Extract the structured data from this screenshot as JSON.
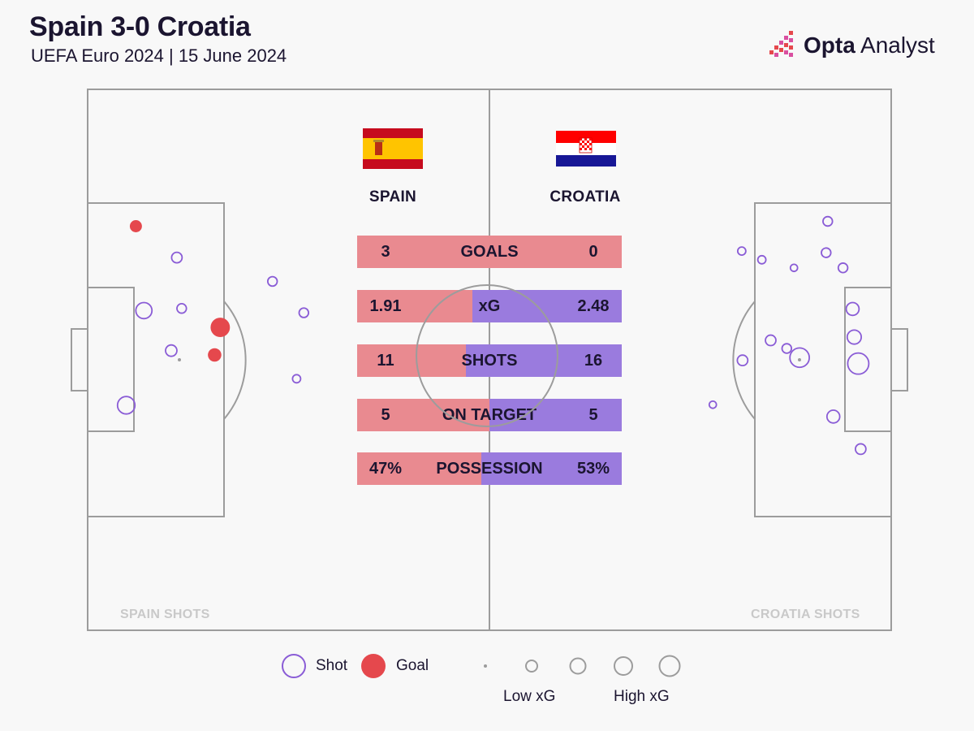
{
  "header": {
    "title": "Spain 3-0 Croatia",
    "subtitle": "UEFA Euro 2024 | 15 June 2024",
    "brand_bold": "Opta",
    "brand_rest": " Analyst"
  },
  "colors": {
    "spain": "#e98a90",
    "croatia": "#9a7bde",
    "shot": "#8a5cd6",
    "goal": "#e5484d",
    "pitch_line": "#9c9c9c"
  },
  "teams": {
    "home": {
      "name": "SPAIN",
      "flag": "spain-flag"
    },
    "away": {
      "name": "CROATIA",
      "flag": "croatia-flag"
    }
  },
  "chart_data": [
    {
      "type": "bar",
      "categories": [
        "GOALS",
        "xG",
        "SHOTS",
        "ON TARGET",
        "POSSESSION"
      ],
      "series": [
        {
          "name": "SPAIN",
          "values": [
            3,
            1.91,
            11,
            5,
            47
          ],
          "labels": [
            "3",
            "1.91",
            "11",
            "5",
            "47%"
          ]
        },
        {
          "name": "CROATIA",
          "values": [
            0,
            2.48,
            16,
            5,
            53
          ],
          "labels": [
            "0",
            "2.48",
            "16",
            "5",
            "53%"
          ]
        }
      ],
      "purple_share": [
        0,
        0.565,
        0.59,
        0.5,
        0.53
      ]
    },
    {
      "type": "scatter",
      "label": "SPAIN SHOTS",
      "pitch": "left half, attacking goal on left",
      "points": [
        {
          "x": 4.8,
          "y": 58.4,
          "xg": 0.15,
          "goal": false
        },
        {
          "x": 7.0,
          "y": 40.9,
          "xg": 0.12,
          "goal": false
        },
        {
          "x": 6.0,
          "y": 25.3,
          "xg": 0.05,
          "goal": true
        },
        {
          "x": 11.1,
          "y": 31.1,
          "xg": 0.03,
          "goal": false
        },
        {
          "x": 11.7,
          "y": 40.5,
          "xg": 0.02,
          "goal": false
        },
        {
          "x": 16.5,
          "y": 44.0,
          "xg": 0.2,
          "goal": true
        },
        {
          "x": 15.8,
          "y": 49.1,
          "xg": 0.07,
          "goal": true
        },
        {
          "x": 23.0,
          "y": 35.5,
          "xg": 0.02,
          "goal": false
        },
        {
          "x": 26.9,
          "y": 41.3,
          "xg": 0.02,
          "goal": false
        },
        {
          "x": 26.0,
          "y": 53.5,
          "xg": 0.01,
          "goal": false
        },
        {
          "x": 10.4,
          "y": 48.3,
          "xg": 0.04,
          "goal": false
        }
      ]
    },
    {
      "type": "scatter",
      "label": "CROATIA SHOTS",
      "pitch": "right half, attacking goal on right",
      "points": [
        {
          "x": 92.1,
          "y": 24.4,
          "xg": 0.02,
          "goal": false
        },
        {
          "x": 91.9,
          "y": 30.2,
          "xg": 0.02,
          "goal": false
        },
        {
          "x": 81.4,
          "y": 29.9,
          "xg": 0.01,
          "goal": false
        },
        {
          "x": 83.9,
          "y": 31.5,
          "xg": 0.01,
          "goal": false
        },
        {
          "x": 87.9,
          "y": 33.0,
          "xg": 0.005,
          "goal": false
        },
        {
          "x": 94.0,
          "y": 33.0,
          "xg": 0.02,
          "goal": false
        },
        {
          "x": 95.2,
          "y": 40.6,
          "xg": 0.06,
          "goal": false
        },
        {
          "x": 95.4,
          "y": 45.8,
          "xg": 0.08,
          "goal": false
        },
        {
          "x": 95.9,
          "y": 50.7,
          "xg": 0.25,
          "goal": false
        },
        {
          "x": 88.6,
          "y": 49.6,
          "xg": 0.2,
          "goal": false
        },
        {
          "x": 87.0,
          "y": 47.9,
          "xg": 0.02,
          "goal": false
        },
        {
          "x": 85.0,
          "y": 46.4,
          "xg": 0.03,
          "goal": false
        },
        {
          "x": 81.5,
          "y": 50.1,
          "xg": 0.03,
          "goal": false
        },
        {
          "x": 77.8,
          "y": 58.3,
          "xg": 0.005,
          "goal": false
        },
        {
          "x": 92.8,
          "y": 60.5,
          "xg": 0.06,
          "goal": false
        },
        {
          "x": 96.2,
          "y": 66.5,
          "xg": 0.03,
          "goal": false
        }
      ]
    }
  ],
  "zones": {
    "left_label": "SPAIN SHOTS",
    "right_label": "CROATIA SHOTS"
  },
  "legend": {
    "shot_label": "Shot",
    "goal_label": "Goal",
    "low_label": "Low xG",
    "high_label": "High xG"
  }
}
